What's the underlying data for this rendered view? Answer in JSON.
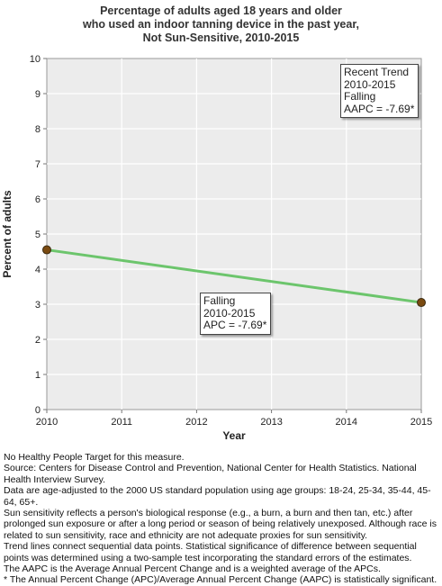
{
  "chart_data": {
    "type": "line",
    "title_lines": [
      "Percentage of adults aged 18 years and older",
      "who used an indoor tanning device in the past year,",
      "Not Sun-Sensitive,  2010-2015"
    ],
    "xlabel": "Year",
    "ylabel": "Percent of adults",
    "x_ticks": [
      "2010",
      "2011",
      "2012",
      "2013",
      "2014",
      "2015"
    ],
    "y_ticks": [
      "0",
      "1",
      "2",
      "3",
      "4",
      "5",
      "6",
      "7",
      "8",
      "9",
      "10"
    ],
    "xlim": [
      2010,
      2015
    ],
    "ylim": [
      0,
      10
    ],
    "grid": true,
    "series": [
      {
        "x": [
          2010,
          2015
        ],
        "y": [
          4.55,
          3.05
        ],
        "color": "#6cc56c",
        "marker_color": "#7a4a10"
      }
    ],
    "annotations": [
      {
        "id": "recent-trend",
        "lines": [
          "Recent Trend",
          "2010-2015",
          "Falling",
          "AAPC = -7.69*"
        ]
      },
      {
        "id": "segment-trend",
        "lines": [
          "Falling",
          "2010-2015",
          "APC = -7.69*"
        ]
      }
    ]
  },
  "footnotes": [
    "No Healthy People Target for this measure.",
    "Source: Centers for Disease Control and Prevention, National Center for Health Statistics. National Health Interview Survey.",
    "Data are age-adjusted to the 2000 US standard population using age groups: 18-24, 25-34, 35-44, 45-64, 65+.",
    "Sun sensitivity reflects a person's biological response (e.g., a burn, a burn and then tan, etc.) after prolonged sun exposure or after a long period or season of being relatively unexposed. Although race is related to sun sensitivity, race and ethnicity are not adequate proxies for sun sensitivity.",
    "Trend lines connect sequential data points. Statistical significance of difference between sequential points was determined using a two-sample test incorporating the standard errors of the estimates.",
    "The AAPC is the Average Annual Percent Change and is a weighted average of the APCs.",
    "* The Annual Percent Change (APC)/Average Annual Percent Change (AAPC) is statistically significant."
  ]
}
